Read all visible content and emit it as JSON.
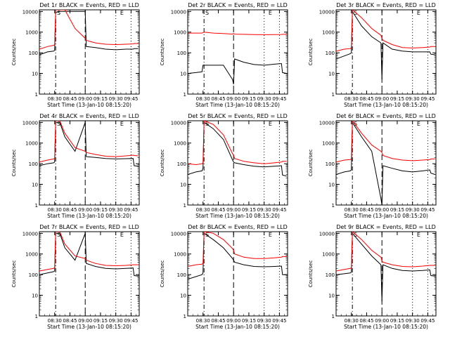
{
  "colors": {
    "events": "#000000",
    "lld": "#ff0000",
    "background": "#ffffff",
    "axis": "#000000"
  },
  "shared": {
    "ylabel": "Counts/sec",
    "xlabel": "Start Time (13-Jan-10 08:15:20)",
    "x_ticks": [
      "08:30",
      "08:45",
      "09:00",
      "09:15",
      "09:30",
      "09:45"
    ],
    "y_ticks": [
      "1",
      "10",
      "100",
      "1000",
      "10000"
    ],
    "y_scale": "log",
    "ylim": [
      1,
      12000
    ],
    "marker_lines": [
      {
        "x": "08:31",
        "style": "dash-dot"
      },
      {
        "x": "09:00",
        "style": "long-dash"
      },
      {
        "x": "09:30",
        "style": "dotted"
      },
      {
        "x": "09:45",
        "style": "dotted"
      }
    ],
    "markers": [
      "S",
      "E"
    ]
  },
  "chart_data": [
    {
      "type": "line",
      "title": "Det 1r BLACK = Events, RED = LLD",
      "x": [
        "08:15",
        "08:23",
        "08:29",
        "08:30",
        "08:31",
        "08:35",
        "08:40",
        "08:50",
        "09:00",
        "09:01",
        "09:10",
        "09:20",
        "09:30",
        "09:40",
        "09:47",
        "09:48",
        "09:52"
      ],
      "series": [
        {
          "name": "Events",
          "color": "#000000",
          "values": [
            80,
            110,
            120,
            130,
            9000,
            10000,
            10000,
            10000,
            10000,
            200,
            180,
            150,
            140,
            150,
            150,
            160,
            160
          ]
        },
        {
          "name": "LLD",
          "color": "#ff0000",
          "values": [
            150,
            200,
            230,
            250,
            12000,
            12000,
            12000,
            1500,
            500,
            400,
            300,
            260,
            250,
            260,
            270,
            280,
            280
          ]
        }
      ]
    },
    {
      "type": "line",
      "title": "Det 2r BLACK = Events, RED = LLD",
      "x": [
        "08:15",
        "08:23",
        "08:29",
        "08:30",
        "08:31",
        "08:40",
        "08:50",
        "08:59",
        "09:00",
        "09:01",
        "09:10",
        "09:20",
        "09:30",
        "09:40",
        "09:47",
        "09:48",
        "09:52"
      ],
      "series": [
        {
          "name": "Events",
          "color": "#000000",
          "values": [
            10,
            11,
            12,
            25,
            25,
            25,
            25,
            5,
            3,
            50,
            35,
            27,
            25,
            28,
            30,
            11,
            10
          ]
        },
        {
          "name": "LLD",
          "color": "#ff0000",
          "values": [
            900,
            900,
            900,
            950,
            1000,
            900,
            850,
            800,
            850,
            800,
            780,
            760,
            750,
            760,
            770,
            780,
            780
          ]
        }
      ]
    },
    {
      "type": "line",
      "title": "Det 3r BLACK = Events, RED = LLD",
      "x": [
        "08:15",
        "08:23",
        "08:29",
        "08:30",
        "08:31",
        "08:40",
        "08:50",
        "08:59",
        "09:00",
        "09:01",
        "09:10",
        "09:20",
        "09:30",
        "09:40",
        "09:47",
        "09:48",
        "09:52"
      ],
      "series": [
        {
          "name": "Events",
          "color": "#000000",
          "values": [
            50,
            70,
            90,
            100,
            10000,
            2000,
            600,
            300,
            5,
            300,
            150,
            120,
            110,
            110,
            110,
            85,
            80
          ]
        },
        {
          "name": "LLD",
          "color": "#ff0000",
          "values": [
            120,
            150,
            160,
            180,
            12000,
            5000,
            1500,
            700,
            500,
            400,
            250,
            180,
            170,
            180,
            190,
            200,
            200
          ]
        }
      ]
    },
    {
      "type": "line",
      "title": "Det 4r BLACK = Events, RED = LLD",
      "x": [
        "08:15",
        "08:23",
        "08:29",
        "08:30",
        "08:31",
        "08:35",
        "08:40",
        "08:50",
        "09:00",
        "09:01",
        "09:10",
        "09:20",
        "09:30",
        "09:40",
        "09:47",
        "09:48",
        "09:52"
      ],
      "series": [
        {
          "name": "Events",
          "color": "#000000",
          "values": [
            80,
            100,
            110,
            120,
            10000,
            10000,
            2000,
            400,
            10000,
            220,
            200,
            180,
            170,
            175,
            180,
            80,
            75
          ]
        },
        {
          "name": "LLD",
          "color": "#ff0000",
          "values": [
            120,
            150,
            170,
            180,
            12000,
            12000,
            3000,
            600,
            400,
            350,
            280,
            230,
            220,
            240,
            260,
            250,
            240
          ]
        }
      ]
    },
    {
      "type": "line",
      "title": "Det 5r BLACK = Events, RED = LLD",
      "x": [
        "08:15",
        "08:23",
        "08:29",
        "08:30",
        "08:31",
        "08:40",
        "08:50",
        "08:59",
        "09:00",
        "09:01",
        "09:10",
        "09:20",
        "09:30",
        "09:40",
        "09:47",
        "09:48",
        "09:52"
      ],
      "series": [
        {
          "name": "Events",
          "color": "#000000",
          "values": [
            30,
            40,
            45,
            60,
            10000,
            5000,
            1500,
            150,
            120,
            110,
            90,
            75,
            70,
            75,
            80,
            28,
            25
          ]
        },
        {
          "name": "LLD",
          "color": "#ff0000",
          "values": [
            100,
            90,
            100,
            110,
            12000,
            8000,
            2500,
            300,
            250,
            180,
            130,
            110,
            100,
            110,
            120,
            130,
            130
          ]
        }
      ]
    },
    {
      "type": "line",
      "title": "Det 6r BLACK = Events, RED = LLD",
      "x": [
        "08:15",
        "08:23",
        "08:29",
        "08:30",
        "08:31",
        "08:40",
        "08:50",
        "08:59",
        "09:00",
        "09:01",
        "09:10",
        "09:20",
        "09:30",
        "09:40",
        "09:47",
        "09:48",
        "09:52"
      ],
      "series": [
        {
          "name": "Events",
          "color": "#000000",
          "values": [
            30,
            40,
            45,
            50,
            10000,
            2000,
            400,
            2,
            1,
            80,
            60,
            45,
            40,
            45,
            50,
            35,
            30
          ]
        },
        {
          "name": "LLD",
          "color": "#ff0000",
          "values": [
            120,
            150,
            160,
            170,
            12000,
            3000,
            800,
            400,
            350,
            250,
            180,
            150,
            140,
            150,
            160,
            170,
            170
          ]
        }
      ]
    },
    {
      "type": "line",
      "title": "Det 7r BLACK = Events, RED = LLD",
      "x": [
        "08:15",
        "08:23",
        "08:29",
        "08:30",
        "08:31",
        "08:35",
        "08:40",
        "08:50",
        "09:00",
        "09:01",
        "09:10",
        "09:20",
        "09:30",
        "09:40",
        "09:47",
        "09:48",
        "09:52"
      ],
      "series": [
        {
          "name": "Events",
          "color": "#000000",
          "values": [
            100,
            120,
            140,
            150,
            10000,
            10000,
            2000,
            500,
            10000,
            350,
            250,
            200,
            190,
            200,
            210,
            90,
            85
          ]
        },
        {
          "name": "LLD",
          "color": "#ff0000",
          "values": [
            150,
            180,
            200,
            220,
            12000,
            12000,
            3000,
            800,
            600,
            500,
            350,
            280,
            270,
            280,
            300,
            300,
            300
          ]
        }
      ]
    },
    {
      "type": "line",
      "title": "Det 8r BLACK = Events, RED = LLD",
      "x": [
        "08:15",
        "08:23",
        "08:29",
        "08:30",
        "08:31",
        "08:40",
        "08:50",
        "08:59",
        "09:00",
        "09:01",
        "09:10",
        "09:20",
        "09:30",
        "09:40",
        "09:47",
        "09:48",
        "09:52"
      ],
      "series": [
        {
          "name": "Events",
          "color": "#000000",
          "values": [
            60,
            80,
            100,
            120,
            10000,
            5000,
            2000,
            600,
            500,
            400,
            300,
            250,
            240,
            250,
            260,
            100,
            100
          ]
        },
        {
          "name": "LLD",
          "color": "#ff0000",
          "values": [
            250,
            300,
            320,
            350,
            12000,
            10000,
            5000,
            1800,
            1500,
            1000,
            700,
            600,
            600,
            650,
            700,
            750,
            750
          ]
        }
      ]
    },
    {
      "type": "line",
      "title": "Det 9r BLACK = Events, RED = LLD",
      "x": [
        "08:15",
        "08:23",
        "08:29",
        "08:30",
        "08:31",
        "08:40",
        "08:50",
        "08:59",
        "09:00",
        "09:01",
        "09:10",
        "09:20",
        "09:30",
        "09:40",
        "09:47",
        "09:48",
        "09:52"
      ],
      "series": [
        {
          "name": "Events",
          "color": "#000000",
          "values": [
            100,
            110,
            120,
            130,
            10000,
            3000,
            800,
            300,
            5,
            300,
            200,
            160,
            150,
            160,
            170,
            90,
            85
          ]
        },
        {
          "name": "LLD",
          "color": "#ff0000",
          "values": [
            150,
            180,
            200,
            220,
            12000,
            5000,
            1500,
            700,
            450,
            400,
            300,
            250,
            240,
            260,
            280,
            280,
            280
          ]
        }
      ]
    }
  ]
}
